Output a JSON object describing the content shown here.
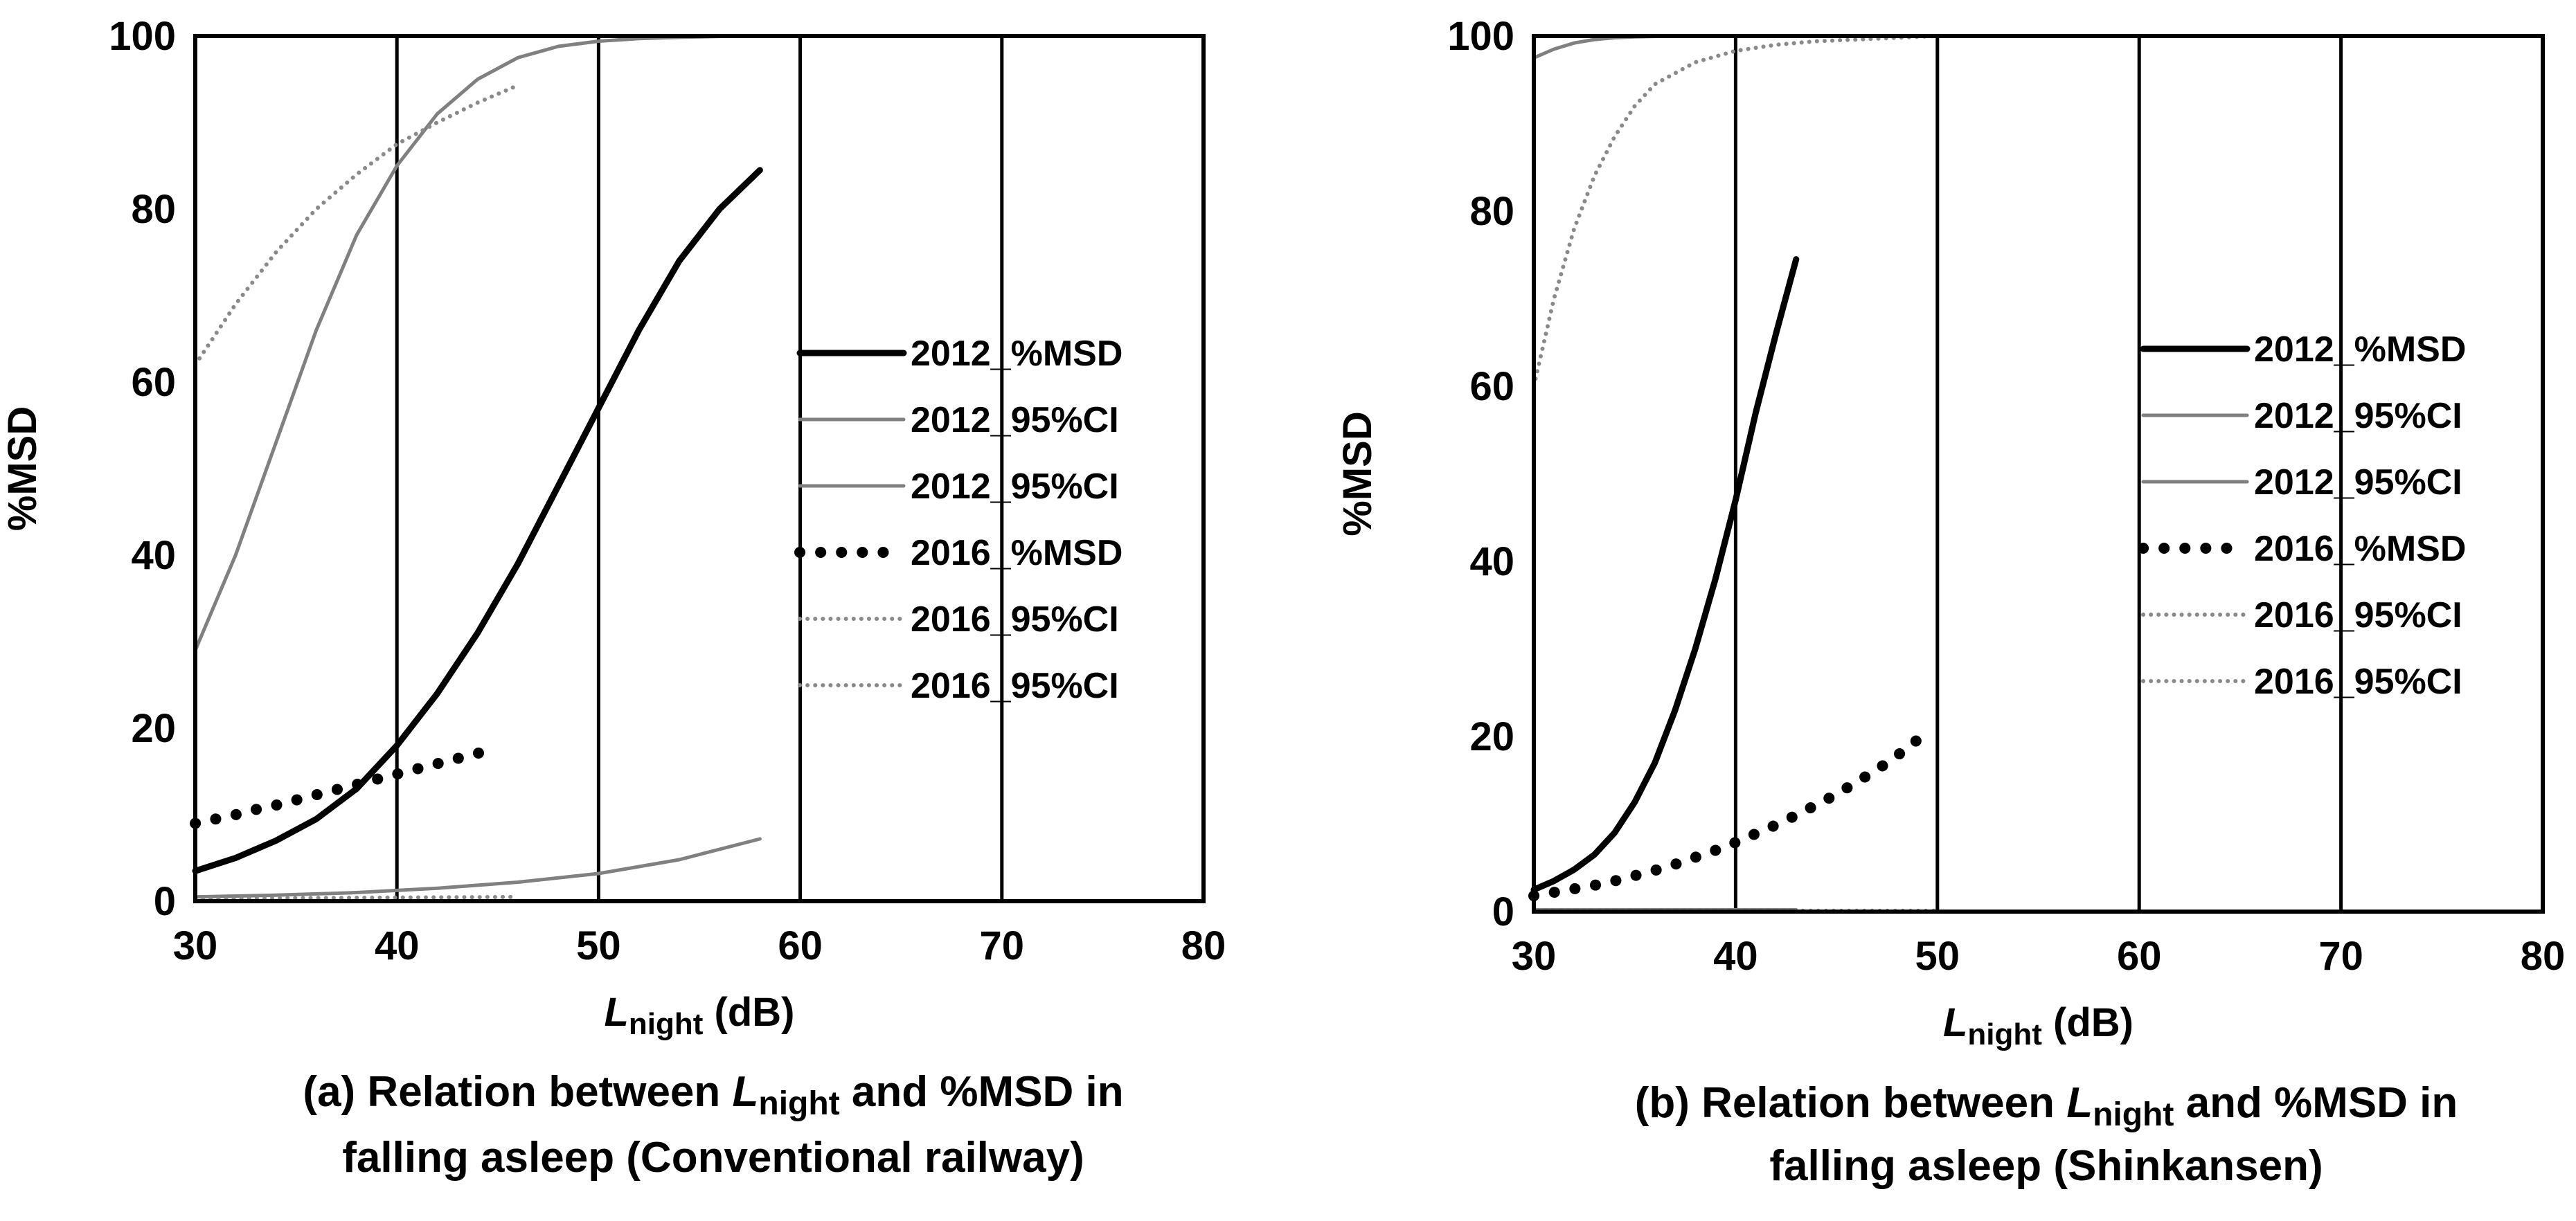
{
  "chart_data": [
    {
      "type": "line",
      "caption": {
        "line1_prefix": "(a) Relation between ",
        "line1_var": "L",
        "line1_sub": "night",
        "line1_suffix": " and %MSD in",
        "line2": "falling asleep (Conventional railway)"
      },
      "xlabel": {
        "var": "L",
        "sub": "night",
        "unit": " (dB)"
      },
      "ylabel": "%MSD",
      "xlim": [
        30,
        80
      ],
      "ylim": [
        0,
        100
      ],
      "xticks": [
        "30",
        "40",
        "50",
        "60",
        "70",
        "80"
      ],
      "yticks": [
        "0",
        "20",
        "40",
        "60",
        "80",
        "100"
      ],
      "legend_position": "right",
      "series": [
        {
          "name": "2012_%MSD",
          "style": "solid-black",
          "x": [
            30,
            32,
            34,
            36,
            38,
            40,
            42,
            44,
            46,
            48,
            50,
            52,
            54,
            56,
            58
          ],
          "y": [
            3.5,
            5,
            7,
            9.5,
            13,
            18,
            24,
            31,
            39,
            48,
            57,
            66,
            74,
            80,
            84.5
          ]
        },
        {
          "name": "2012_95%CI",
          "style": "solid-gray",
          "x": [
            30,
            32,
            34,
            36,
            38,
            40,
            42,
            44,
            46,
            48,
            50,
            52,
            54,
            56,
            58
          ],
          "y": [
            29,
            40,
            53,
            66,
            77,
            85,
            91,
            95,
            97.5,
            98.8,
            99.4,
            99.7,
            99.85,
            99.95,
            100
          ]
        },
        {
          "name": "2012_95%CI",
          "style": "solid-gray",
          "x": [
            30,
            34,
            38,
            42,
            46,
            50,
            54,
            58
          ],
          "y": [
            0.5,
            0.7,
            1.0,
            1.5,
            2.2,
            3.2,
            4.8,
            7.2
          ]
        },
        {
          "name": "2016_%MSD",
          "style": "dotted-black",
          "x": [
            30,
            31,
            32,
            33,
            34,
            35,
            36,
            37,
            38,
            39,
            40,
            41,
            42,
            43,
            44,
            45
          ],
          "y": [
            9,
            9.5,
            10,
            10.6,
            11.1,
            11.7,
            12.3,
            12.9,
            13.5,
            14.1,
            14.7,
            15.3,
            15.9,
            16.5,
            17.1,
            17.7
          ]
        },
        {
          "name": "2016_95%CI",
          "style": "dotted-gray",
          "x": [
            30,
            32,
            34,
            36,
            38,
            40,
            42,
            44,
            46
          ],
          "y": [
            62,
            69,
            75,
            80,
            84,
            87.5,
            90,
            92.3,
            94.3
          ]
        },
        {
          "name": "2016_95%CI",
          "style": "dotted-gray",
          "x": [
            30,
            34,
            38,
            42,
            46
          ],
          "y": [
            0.3,
            0.35,
            0.4,
            0.45,
            0.5
          ]
        }
      ]
    },
    {
      "type": "line",
      "caption": {
        "line1_prefix": "(b) Relation between ",
        "line1_var": "L",
        "line1_sub": "night",
        "line1_suffix": " and %MSD in",
        "line2": "falling asleep (Shinkansen)"
      },
      "xlabel": {
        "var": "L",
        "sub": "night",
        "unit": " (dB)"
      },
      "ylabel": "%MSD",
      "xlim": [
        30,
        80
      ],
      "ylim": [
        0,
        100
      ],
      "xticks": [
        "30",
        "40",
        "50",
        "60",
        "70",
        "80"
      ],
      "yticks": [
        "0",
        "20",
        "40",
        "60",
        "80",
        "100"
      ],
      "legend_position": "right",
      "series": [
        {
          "name": "2012_%MSD",
          "style": "solid-black",
          "x": [
            30,
            31,
            32,
            33,
            34,
            35,
            36,
            37,
            38,
            39,
            40,
            41,
            42,
            43
          ],
          "y": [
            2.5,
            3.5,
            4.8,
            6.5,
            9,
            12.5,
            17,
            23,
            30,
            38,
            47,
            57,
            66,
            74.5
          ]
        },
        {
          "name": "2012_95%CI",
          "style": "solid-gray",
          "x": [
            30,
            31,
            32,
            33,
            34,
            35,
            37,
            39,
            41,
            43
          ],
          "y": [
            97.5,
            98.5,
            99.2,
            99.6,
            99.8,
            99.9,
            100,
            100,
            100,
            100
          ]
        },
        {
          "name": "2012_95%CI",
          "style": "solid-gray",
          "x": [
            30,
            43
          ],
          "y": [
            0.2,
            0.2
          ]
        },
        {
          "name": "2016_%MSD",
          "style": "dotted-black",
          "x": [
            30,
            31,
            32,
            33,
            34,
            35,
            36,
            37,
            38,
            39,
            40,
            41,
            42,
            43,
            44,
            45,
            46,
            47,
            48,
            49
          ],
          "y": [
            1.8,
            2.2,
            2.6,
            3.0,
            3.5,
            4.1,
            4.7,
            5.4,
            6.2,
            7.0,
            7.9,
            8.9,
            9.9,
            11.0,
            12.2,
            13.4,
            14.8,
            16.2,
            17.8,
            19.6
          ]
        },
        {
          "name": "2016_95%CI",
          "style": "dotted-gray",
          "x": [
            30,
            31,
            32,
            33,
            34,
            35,
            36,
            38,
            40,
            42,
            44,
            46,
            48,
            50
          ],
          "y": [
            60,
            70,
            78,
            84,
            88.5,
            92,
            94.5,
            97,
            98.3,
            99,
            99.4,
            99.6,
            99.8,
            100
          ]
        },
        {
          "name": "2016_95%CI",
          "style": "dotted-gray",
          "x": [
            30,
            40,
            50
          ],
          "y": [
            0.1,
            0.1,
            0.1
          ]
        }
      ]
    }
  ]
}
